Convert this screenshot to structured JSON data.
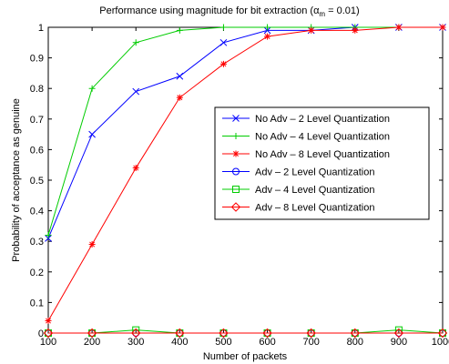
{
  "chart_data": {
    "type": "line",
    "title": "Performance using magnitude for bit extraction (",
    "title_symbol": "α",
    "title_subscript": "m",
    "title_suffix": " = 0.01)",
    "xlabel": "Number of packets",
    "ylabel": "Probability of acceptance as genuine",
    "x": [
      100,
      200,
      300,
      400,
      500,
      600,
      700,
      800,
      900,
      1000
    ],
    "xlim": [
      100,
      1000
    ],
    "ylim": [
      0,
      1
    ],
    "xticks": [
      "100",
      "200",
      "300",
      "400",
      "500",
      "600",
      "700",
      "800",
      "900",
      "1000"
    ],
    "yticks": [
      "0",
      "0.1",
      "0.2",
      "0.3",
      "0.4",
      "0.5",
      "0.6",
      "0.7",
      "0.8",
      "0.9",
      "1"
    ],
    "ytick_values": [
      0,
      0.1,
      0.2,
      0.3,
      0.4,
      0.5,
      0.6,
      0.7,
      0.8,
      0.9,
      1
    ],
    "grid": false,
    "legend_position": "center-right",
    "series": [
      {
        "name": "No Adv – 2 Level Quantization",
        "color": "#0000ff",
        "marker": "x",
        "values": [
          0.31,
          0.65,
          0.79,
          0.84,
          0.95,
          0.99,
          0.99,
          1.0,
          1.0,
          1.0
        ]
      },
      {
        "name": "No Adv – 4 Level Quantization",
        "color": "#00cc00",
        "marker": "plus",
        "values": [
          0.32,
          0.8,
          0.95,
          0.99,
          1.0,
          1.0,
          1.0,
          1.0,
          1.0,
          1.0
        ]
      },
      {
        "name": "No Adv – 8 Level Quantization",
        "color": "#ff0000",
        "marker": "star",
        "values": [
          0.04,
          0.29,
          0.54,
          0.77,
          0.88,
          0.97,
          0.99,
          0.99,
          1.0,
          1.0
        ]
      },
      {
        "name": "Adv – 2 Level Quantization",
        "color": "#0000ff",
        "marker": "circle",
        "values": [
          0,
          0,
          0,
          0,
          0,
          0,
          0,
          0,
          0,
          0
        ]
      },
      {
        "name": "Adv – 4 Level Quantization",
        "color": "#00cc00",
        "marker": "square",
        "values": [
          0,
          0,
          0.01,
          0,
          0,
          0,
          0,
          0,
          0.01,
          0
        ]
      },
      {
        "name": "Adv – 8 Level Quantization",
        "color": "#ff0000",
        "marker": "diamond",
        "values": [
          0,
          0,
          0,
          0,
          0,
          0,
          0,
          0,
          0,
          0
        ]
      }
    ]
  }
}
